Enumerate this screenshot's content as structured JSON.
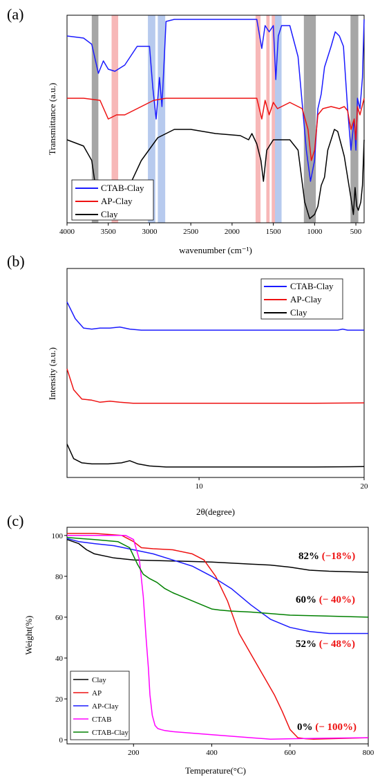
{
  "chart_data": [
    {
      "panel": "(a)",
      "type": "line",
      "xlabel": "wavenumber (cm⁻¹)",
      "ylabel": "Transmittance (a.u.)",
      "xlim": [
        4000,
        400
      ],
      "x_reversed": true,
      "xticks": [
        4000,
        3500,
        3000,
        2500,
        2000,
        1500,
        1000,
        500
      ],
      "legend_position": "bottom-left",
      "colors": {
        "CTAB-Clay": "#1a1aff",
        "AP-Clay": "#ee1111",
        "Clay": "#000000"
      },
      "bands": [
        {
          "from": 3700,
          "to": 3620,
          "color": "#888888"
        },
        {
          "from": 3460,
          "to": 3380,
          "color": "#f4a0a0"
        },
        {
          "from": 3020,
          "to": 2930,
          "color": "#9fb8e8"
        },
        {
          "from": 2900,
          "to": 2810,
          "color": "#9fb8e8"
        },
        {
          "from": 1715,
          "to": 1655,
          "color": "#f4a0a0"
        },
        {
          "from": 1585,
          "to": 1545,
          "color": "#f4a0a0"
        },
        {
          "from": 1520,
          "to": 1480,
          "color": "#f4a0a0"
        },
        {
          "from": 1480,
          "to": 1400,
          "color": "#9fb8e8"
        },
        {
          "from": 1130,
          "to": 985,
          "color": "#888888"
        },
        {
          "from": 565,
          "to": 470,
          "color": "#888888"
        }
      ],
      "series": [
        {
          "name": "CTAB-Clay",
          "x": [
            4000,
            3800,
            3700,
            3620,
            3560,
            3500,
            3420,
            3300,
            3150,
            3000,
            2960,
            2920,
            2880,
            2850,
            2800,
            2700,
            2500,
            2000,
            1800,
            1700,
            1640,
            1600,
            1550,
            1500,
            1470,
            1440,
            1400,
            1300,
            1200,
            1100,
            1050,
            1000,
            960,
            920,
            880,
            800,
            750,
            700,
            650,
            600,
            560,
            520,
            500,
            480,
            450,
            420,
            400
          ],
          "y": [
            0.9,
            0.89,
            0.86,
            0.72,
            0.78,
            0.74,
            0.73,
            0.76,
            0.85,
            0.85,
            0.65,
            0.5,
            0.7,
            0.56,
            0.97,
            0.98,
            0.98,
            0.98,
            0.98,
            0.98,
            0.84,
            0.95,
            0.92,
            0.95,
            0.69,
            0.9,
            0.95,
            0.95,
            0.8,
            0.35,
            0.2,
            0.3,
            0.55,
            0.62,
            0.75,
            0.85,
            0.92,
            0.9,
            0.85,
            0.55,
            0.35,
            0.5,
            0.35,
            0.6,
            0.55,
            0.7,
            0.98
          ]
        },
        {
          "name": "AP-Clay",
          "x": [
            4000,
            3800,
            3600,
            3500,
            3400,
            3300,
            3100,
            2950,
            2800,
            2600,
            2300,
            2000,
            1800,
            1700,
            1640,
            1600,
            1550,
            1500,
            1450,
            1300,
            1150,
            1080,
            1040,
            1000,
            960,
            900,
            800,
            700,
            640,
            600,
            560,
            520,
            500,
            480,
            450,
            400
          ],
          "y": [
            0.6,
            0.6,
            0.59,
            0.5,
            0.52,
            0.52,
            0.56,
            0.59,
            0.6,
            0.6,
            0.6,
            0.6,
            0.6,
            0.6,
            0.5,
            0.59,
            0.52,
            0.58,
            0.55,
            0.58,
            0.55,
            0.45,
            0.3,
            0.35,
            0.52,
            0.55,
            0.56,
            0.55,
            0.56,
            0.54,
            0.45,
            0.5,
            0.4,
            0.56,
            0.52,
            0.6
          ]
        },
        {
          "name": "Clay",
          "x": [
            4000,
            3800,
            3700,
            3650,
            3600,
            3550,
            3400,
            3300,
            3100,
            2900,
            2700,
            2500,
            2200,
            1900,
            1800,
            1760,
            1700,
            1650,
            1620,
            1580,
            1500,
            1300,
            1200,
            1120,
            1060,
            1000,
            960,
            920,
            880,
            840,
            760,
            720,
            680,
            640,
            600,
            560,
            530,
            510,
            490,
            470,
            440,
            420,
            400
          ],
          "y": [
            0.4,
            0.37,
            0.3,
            0.16,
            0.12,
            0.14,
            0.06,
            0.13,
            0.3,
            0.41,
            0.45,
            0.45,
            0.43,
            0.42,
            0.4,
            0.43,
            0.38,
            0.3,
            0.2,
            0.35,
            0.4,
            0.4,
            0.35,
            0.1,
            0.02,
            0.04,
            0.08,
            0.18,
            0.22,
            0.35,
            0.45,
            0.44,
            0.38,
            0.32,
            0.22,
            0.12,
            0.04,
            0.17,
            0.08,
            0.06,
            0.1,
            0.18,
            0.4
          ]
        }
      ]
    },
    {
      "panel": "(b)",
      "type": "line",
      "xlabel": "2θ(degree)",
      "ylabel": "Intensity (a.u.)",
      "xlim": [
        2,
        20
      ],
      "xticks": [
        10,
        20
      ],
      "legend_position": "top-right",
      "colors": {
        "CTAB-Clay": "#1a1aff",
        "AP-Clay": "#ee1111",
        "Clay": "#000000"
      },
      "series": [
        {
          "name": "CTAB-Clay",
          "x": [
            2,
            2.5,
            3,
            3.5,
            4,
            4.6,
            5.2,
            5.8,
            6.5,
            8,
            10,
            14,
            17,
            18.4,
            18.7,
            19,
            20
          ],
          "y": [
            0.84,
            0.76,
            0.715,
            0.71,
            0.715,
            0.715,
            0.72,
            0.71,
            0.705,
            0.705,
            0.705,
            0.705,
            0.705,
            0.705,
            0.71,
            0.705,
            0.705
          ]
        },
        {
          "name": "AP-Clay",
          "x": [
            2,
            2.4,
            2.9,
            3.5,
            4,
            4.6,
            5.2,
            6,
            8,
            10,
            14,
            17,
            20
          ],
          "y": [
            0.52,
            0.42,
            0.375,
            0.37,
            0.36,
            0.365,
            0.36,
            0.355,
            0.355,
            0.355,
            0.355,
            0.355,
            0.357
          ]
        },
        {
          "name": "Clay",
          "x": [
            2,
            2.4,
            2.9,
            3.5,
            4.5,
            5.3,
            5.8,
            6.3,
            7,
            8,
            10,
            14,
            17,
            20
          ],
          "y": [
            0.16,
            0.09,
            0.07,
            0.065,
            0.065,
            0.07,
            0.08,
            0.065,
            0.055,
            0.05,
            0.05,
            0.05,
            0.05,
            0.052
          ]
        }
      ]
    },
    {
      "panel": "(c)",
      "type": "line",
      "xlabel": "Temperature(°C)",
      "ylabel": "Weight(%)",
      "xlim": [
        30,
        800
      ],
      "ylim": [
        0,
        100
      ],
      "xticks": [
        200,
        400,
        600,
        800
      ],
      "yticks": [
        0,
        20,
        40,
        60,
        80,
        100
      ],
      "legend_position": "bottom-left",
      "colors": {
        "Clay": "#000000",
        "AP": "#ee1111",
        "AP-Clay": "#1a1aff",
        "CTAB": "#ff00ff",
        "CTAB-Clay": "#008000"
      },
      "series": [
        {
          "name": "Clay",
          "x": [
            30,
            60,
            80,
            100,
            150,
            200,
            300,
            400,
            500,
            550,
            600,
            650,
            700,
            800
          ],
          "y": [
            98,
            96,
            93,
            91,
            89,
            88,
            87.5,
            87,
            86,
            85.5,
            84.5,
            83,
            82.5,
            82
          ]
        },
        {
          "name": "AP",
          "x": [
            30,
            100,
            170,
            200,
            220,
            250,
            300,
            350,
            380,
            410,
            440,
            470,
            500,
            530,
            560,
            580,
            600,
            620,
            640,
            660,
            700,
            800
          ],
          "y": [
            101,
            101,
            100,
            97,
            94,
            93.5,
            93,
            91,
            88,
            80,
            68,
            52,
            42,
            32,
            22,
            14,
            5,
            1,
            0.5,
            0.3,
            0.5,
            1
          ]
        },
        {
          "name": "AP-Clay",
          "x": [
            30,
            60,
            100,
            150,
            200,
            250,
            300,
            350,
            400,
            450,
            500,
            550,
            600,
            650,
            700,
            750,
            800
          ],
          "y": [
            98.5,
            97,
            96,
            95,
            93,
            91,
            88,
            85,
            80,
            74,
            66,
            59,
            55,
            53,
            52,
            52,
            52
          ]
        },
        {
          "name": "CTAB",
          "x": [
            30,
            100,
            180,
            200,
            215,
            225,
            232,
            238,
            242,
            248,
            255,
            262,
            270,
            280,
            300,
            400,
            500,
            550,
            600,
            700,
            800
          ],
          "y": [
            100,
            100,
            100,
            98,
            88,
            70,
            50,
            35,
            22,
            12,
            7,
            5.5,
            5,
            4.5,
            4,
            2.5,
            1,
            0.3,
            0.5,
            0.8,
            1
          ]
        },
        {
          "name": "CTAB-Clay",
          "x": [
            30,
            100,
            160,
            190,
            210,
            225,
            240,
            260,
            280,
            300,
            350,
            400,
            420,
            450,
            500,
            600,
            700,
            800
          ],
          "y": [
            99,
            98,
            97,
            94,
            86,
            81,
            79,
            77,
            74,
            72,
            68,
            64,
            63.5,
            63,
            62.5,
            61,
            60.5,
            60
          ]
        }
      ],
      "annotations": [
        {
          "value": "82%",
          "delta": "(−18%)"
        },
        {
          "value": "60%",
          "delta": "(− 40%)"
        },
        {
          "value": "52%",
          "delta": "(− 48%)"
        },
        {
          "value": "0%",
          "delta": "(− 100%)"
        }
      ]
    }
  ]
}
